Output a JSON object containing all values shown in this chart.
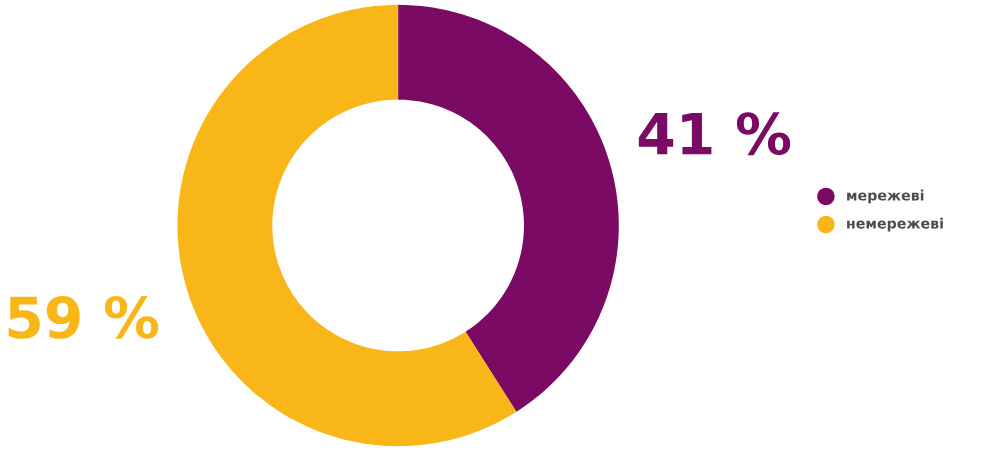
{
  "chart_data": {
    "type": "donut",
    "categories": [
      "мережеві",
      "немережеві"
    ],
    "values": [
      41,
      59
    ],
    "colors": [
      "#7a0a63",
      "#f8b619"
    ],
    "value_labels": [
      "41 %",
      "59 %"
    ],
    "legend": "right"
  }
}
